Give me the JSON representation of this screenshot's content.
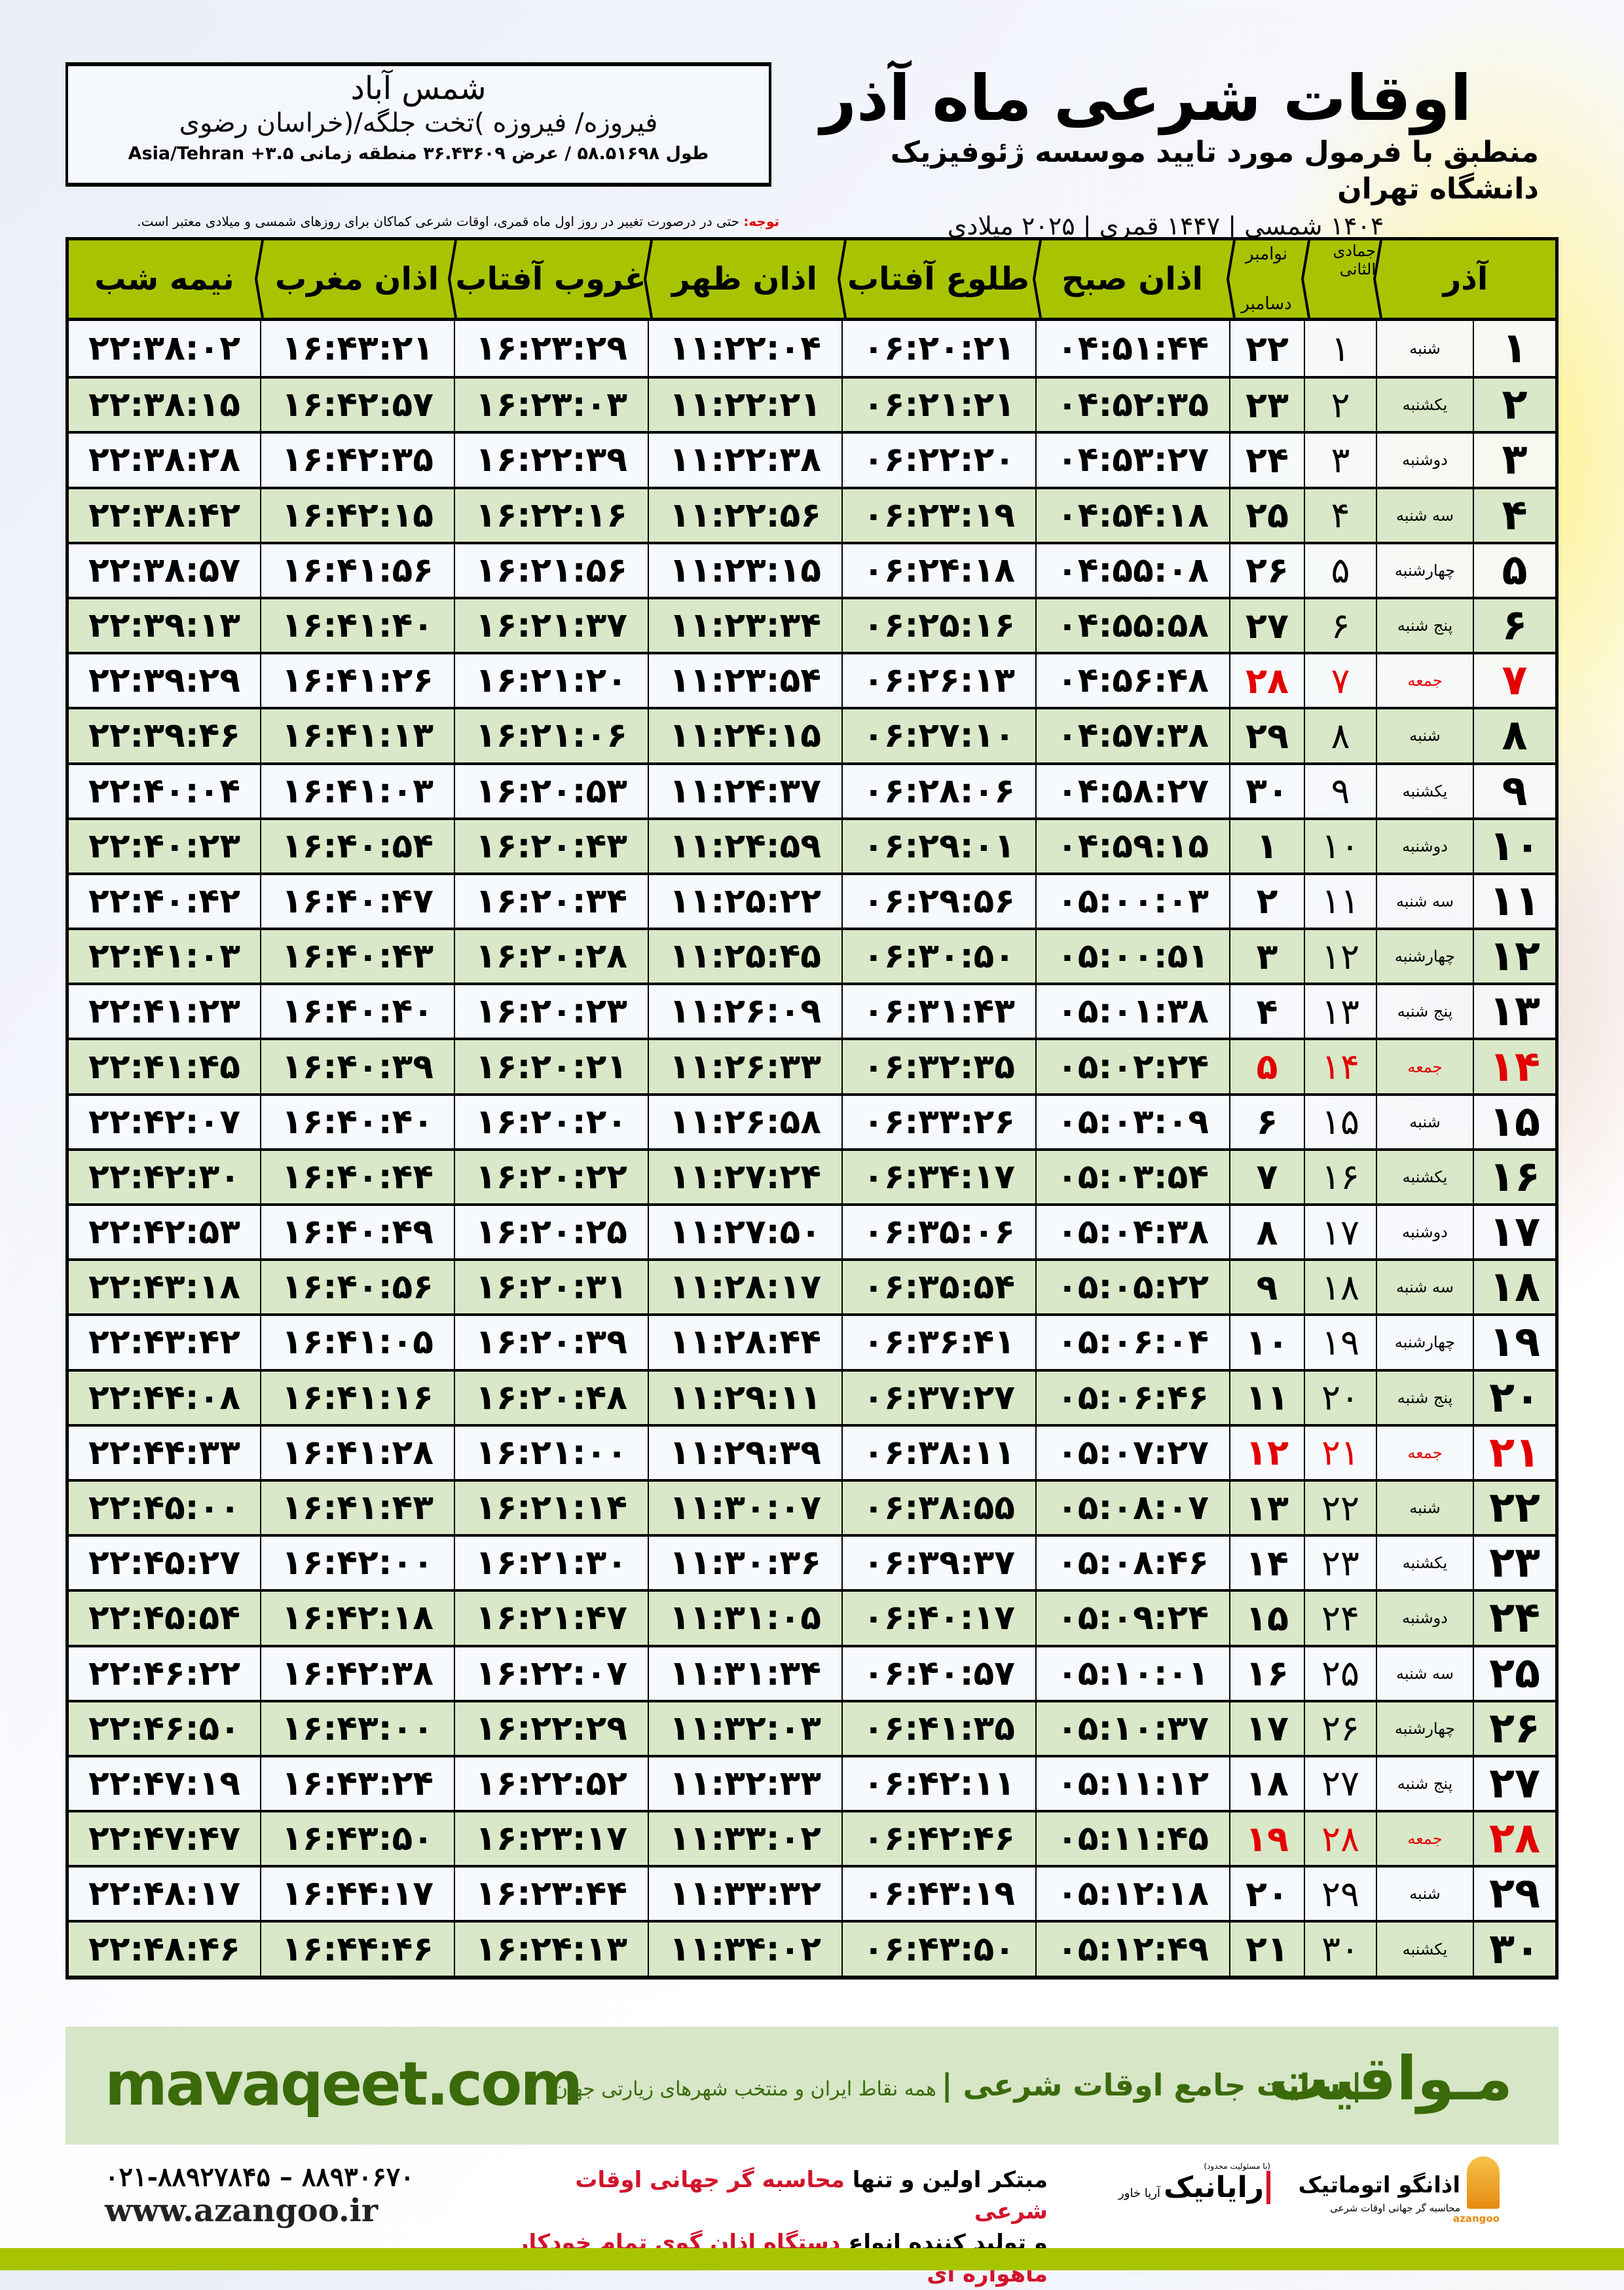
{
  "location": {
    "city": "شمس آباد",
    "province": "فیروزه/ فیروزه )تخت جلگه/(خراسان رضوی",
    "coords": "طول ۵۸.۵۱۶۹۸ / عرض ۳۶.۴۳۶۰۹ منطقه زمانی ۳.۵+ Asia/Tehran"
  },
  "title": {
    "main": "اوقات شرعی ماه آذر",
    "subtitle": "منطبق با فرمول مورد تایید موسسه ژئوفیزیک دانشگاه تهران",
    "years": "۱۴۰۴ شمسی | ۱۴۴۷ قمری | ۲۰۲۵ میلادی"
  },
  "note": {
    "label": "توجه:",
    "text": " حتی در درصورت تغییر در روز اول ماه قمری، اوقات شرعی کماکان برای روزهای شمسی و میلادی معتبر است."
  },
  "colors": {
    "header_green": "#a8c400",
    "row_green": "#d9e8c8",
    "holiday_red": "#e30000",
    "brand_green": "#3b6a0a"
  },
  "table": {
    "headers": {
      "month": "آذر",
      "hijri_month": "جمادی الثانی",
      "greg_month_top": "نوامبر",
      "greg_month_bottom": "دسامبر",
      "fajr": "اذان صبح",
      "sunrise": "طلوع آفتاب",
      "dhuhr": "اذان ظهر",
      "sunset": "غروب آفتاب",
      "maghrib": "اذان مغرب",
      "midnight": "نیمه شب"
    },
    "rows": [
      {
        "day": "۱",
        "weekday": "شنبه",
        "hijri": "۱",
        "greg": "۲۲",
        "fajr": "۰۴:۵۱:۴۴",
        "sunrise": "۰۶:۲۰:۲۱",
        "dhuhr": "۱۱:۲۲:۰۴",
        "sunset": "۱۶:۲۳:۲۹",
        "maghrib": "۱۶:۴۳:۲۱",
        "midnight": "۲۲:۳۸:۰۲"
      },
      {
        "day": "۲",
        "weekday": "یکشنبه",
        "hijri": "۲",
        "greg": "۲۳",
        "fajr": "۰۴:۵۲:۳۵",
        "sunrise": "۰۶:۲۱:۲۱",
        "dhuhr": "۱۱:۲۲:۲۱",
        "sunset": "۱۶:۲۳:۰۳",
        "maghrib": "۱۶:۴۲:۵۷",
        "midnight": "۲۲:۳۸:۱۵"
      },
      {
        "day": "۳",
        "weekday": "دوشنبه",
        "hijri": "۳",
        "greg": "۲۴",
        "fajr": "۰۴:۵۳:۲۷",
        "sunrise": "۰۶:۲۲:۲۰",
        "dhuhr": "۱۱:۲۲:۳۸",
        "sunset": "۱۶:۲۲:۳۹",
        "maghrib": "۱۶:۴۲:۳۵",
        "midnight": "۲۲:۳۸:۲۸"
      },
      {
        "day": "۴",
        "weekday": "سه شنبه",
        "hijri": "۴",
        "greg": "۲۵",
        "fajr": "۰۴:۵۴:۱۸",
        "sunrise": "۰۶:۲۳:۱۹",
        "dhuhr": "۱۱:۲۲:۵۶",
        "sunset": "۱۶:۲۲:۱۶",
        "maghrib": "۱۶:۴۲:۱۵",
        "midnight": "۲۲:۳۸:۴۲"
      },
      {
        "day": "۵",
        "weekday": "چهارشنبه",
        "hijri": "۵",
        "greg": "۲۶",
        "fajr": "۰۴:۵۵:۰۸",
        "sunrise": "۰۶:۲۴:۱۸",
        "dhuhr": "۱۱:۲۳:۱۵",
        "sunset": "۱۶:۲۱:۵۶",
        "maghrib": "۱۶:۴۱:۵۶",
        "midnight": "۲۲:۳۸:۵۷"
      },
      {
        "day": "۶",
        "weekday": "پنج شنبه",
        "hijri": "۶",
        "greg": "۲۷",
        "fajr": "۰۴:۵۵:۵۸",
        "sunrise": "۰۶:۲۵:۱۶",
        "dhuhr": "۱۱:۲۳:۳۴",
        "sunset": "۱۶:۲۱:۳۷",
        "maghrib": "۱۶:۴۱:۴۰",
        "midnight": "۲۲:۳۹:۱۳"
      },
      {
        "day": "۷",
        "weekday": "جمعه",
        "hijri": "۷",
        "greg": "۲۸",
        "holiday": true,
        "fajr": "۰۴:۵۶:۴۸",
        "sunrise": "۰۶:۲۶:۱۳",
        "dhuhr": "۱۱:۲۳:۵۴",
        "sunset": "۱۶:۲۱:۲۰",
        "maghrib": "۱۶:۴۱:۲۶",
        "midnight": "۲۲:۳۹:۲۹"
      },
      {
        "day": "۸",
        "weekday": "شنبه",
        "hijri": "۸",
        "greg": "۲۹",
        "fajr": "۰۴:۵۷:۳۸",
        "sunrise": "۰۶:۲۷:۱۰",
        "dhuhr": "۱۱:۲۴:۱۵",
        "sunset": "۱۶:۲۱:۰۶",
        "maghrib": "۱۶:۴۱:۱۳",
        "midnight": "۲۲:۳۹:۴۶"
      },
      {
        "day": "۹",
        "weekday": "یکشنبه",
        "hijri": "۹",
        "greg": "۳۰",
        "fajr": "۰۴:۵۸:۲۷",
        "sunrise": "۰۶:۲۸:۰۶",
        "dhuhr": "۱۱:۲۴:۳۷",
        "sunset": "۱۶:۲۰:۵۳",
        "maghrib": "۱۶:۴۱:۰۳",
        "midnight": "۲۲:۴۰:۰۴"
      },
      {
        "day": "۱۰",
        "weekday": "دوشنبه",
        "hijri": "۱۰",
        "greg": "۱",
        "fajr": "۰۴:۵۹:۱۵",
        "sunrise": "۰۶:۲۹:۰۱",
        "dhuhr": "۱۱:۲۴:۵۹",
        "sunset": "۱۶:۲۰:۴۳",
        "maghrib": "۱۶:۴۰:۵۴",
        "midnight": "۲۲:۴۰:۲۳"
      },
      {
        "day": "۱۱",
        "weekday": "سه شنبه",
        "hijri": "۱۱",
        "greg": "۲",
        "fajr": "۰۵:۰۰:۰۳",
        "sunrise": "۰۶:۲۹:۵۶",
        "dhuhr": "۱۱:۲۵:۲۲",
        "sunset": "۱۶:۲۰:۳۴",
        "maghrib": "۱۶:۴۰:۴۷",
        "midnight": "۲۲:۴۰:۴۲"
      },
      {
        "day": "۱۲",
        "weekday": "چهارشنبه",
        "hijri": "۱۲",
        "greg": "۳",
        "fajr": "۰۵:۰۰:۵۱",
        "sunrise": "۰۶:۳۰:۵۰",
        "dhuhr": "۱۱:۲۵:۴۵",
        "sunset": "۱۶:۲۰:۲۸",
        "maghrib": "۱۶:۴۰:۴۳",
        "midnight": "۲۲:۴۱:۰۳"
      },
      {
        "day": "۱۳",
        "weekday": "پنج شنبه",
        "hijri": "۱۳",
        "greg": "۴",
        "fajr": "۰۵:۰۱:۳۸",
        "sunrise": "۰۶:۳۱:۴۳",
        "dhuhr": "۱۱:۲۶:۰۹",
        "sunset": "۱۶:۲۰:۲۳",
        "maghrib": "۱۶:۴۰:۴۰",
        "midnight": "۲۲:۴۱:۲۳"
      },
      {
        "day": "۱۴",
        "weekday": "جمعه",
        "hijri": "۱۴",
        "greg": "۵",
        "holiday": true,
        "fajr": "۰۵:۰۲:۲۴",
        "sunrise": "۰۶:۳۲:۳۵",
        "dhuhr": "۱۱:۲۶:۳۳",
        "sunset": "۱۶:۲۰:۲۱",
        "maghrib": "۱۶:۴۰:۳۹",
        "midnight": "۲۲:۴۱:۴۵"
      },
      {
        "day": "۱۵",
        "weekday": "شنبه",
        "hijri": "۱۵",
        "greg": "۶",
        "fajr": "۰۵:۰۳:۰۹",
        "sunrise": "۰۶:۳۳:۲۶",
        "dhuhr": "۱۱:۲۶:۵۸",
        "sunset": "۱۶:۲۰:۲۰",
        "maghrib": "۱۶:۴۰:۴۰",
        "midnight": "۲۲:۴۲:۰۷"
      },
      {
        "day": "۱۶",
        "weekday": "یکشنبه",
        "hijri": "۱۶",
        "greg": "۷",
        "fajr": "۰۵:۰۳:۵۴",
        "sunrise": "۰۶:۳۴:۱۷",
        "dhuhr": "۱۱:۲۷:۲۴",
        "sunset": "۱۶:۲۰:۲۲",
        "maghrib": "۱۶:۴۰:۴۴",
        "midnight": "۲۲:۴۲:۳۰"
      },
      {
        "day": "۱۷",
        "weekday": "دوشنبه",
        "hijri": "۱۷",
        "greg": "۸",
        "fajr": "۰۵:۰۴:۳۸",
        "sunrise": "۰۶:۳۵:۰۶",
        "dhuhr": "۱۱:۲۷:۵۰",
        "sunset": "۱۶:۲۰:۲۵",
        "maghrib": "۱۶:۴۰:۴۹",
        "midnight": "۲۲:۴۲:۵۳"
      },
      {
        "day": "۱۸",
        "weekday": "سه شنبه",
        "hijri": "۱۸",
        "greg": "۹",
        "fajr": "۰۵:۰۵:۲۲",
        "sunrise": "۰۶:۳۵:۵۴",
        "dhuhr": "۱۱:۲۸:۱۷",
        "sunset": "۱۶:۲۰:۳۱",
        "maghrib": "۱۶:۴۰:۵۶",
        "midnight": "۲۲:۴۳:۱۸"
      },
      {
        "day": "۱۹",
        "weekday": "چهارشنبه",
        "hijri": "۱۹",
        "greg": "۱۰",
        "fajr": "۰۵:۰۶:۰۴",
        "sunrise": "۰۶:۳۶:۴۱",
        "dhuhr": "۱۱:۲۸:۴۴",
        "sunset": "۱۶:۲۰:۳۹",
        "maghrib": "۱۶:۴۱:۰۵",
        "midnight": "۲۲:۴۳:۴۲"
      },
      {
        "day": "۲۰",
        "weekday": "پنج شنبه",
        "hijri": "۲۰",
        "greg": "۱۱",
        "fajr": "۰۵:۰۶:۴۶",
        "sunrise": "۰۶:۳۷:۲۷",
        "dhuhr": "۱۱:۲۹:۱۱",
        "sunset": "۱۶:۲۰:۴۸",
        "maghrib": "۱۶:۴۱:۱۶",
        "midnight": "۲۲:۴۴:۰۸"
      },
      {
        "day": "۲۱",
        "weekday": "جمعه",
        "hijri": "۲۱",
        "greg": "۱۲",
        "holiday": true,
        "fajr": "۰۵:۰۷:۲۷",
        "sunrise": "۰۶:۳۸:۱۱",
        "dhuhr": "۱۱:۲۹:۳۹",
        "sunset": "۱۶:۲۱:۰۰",
        "maghrib": "۱۶:۴۱:۲۸",
        "midnight": "۲۲:۴۴:۳۳"
      },
      {
        "day": "۲۲",
        "weekday": "شنبه",
        "hijri": "۲۲",
        "greg": "۱۳",
        "fajr": "۰۵:۰۸:۰۷",
        "sunrise": "۰۶:۳۸:۵۵",
        "dhuhr": "۱۱:۳۰:۰۷",
        "sunset": "۱۶:۲۱:۱۴",
        "maghrib": "۱۶:۴۱:۴۳",
        "midnight": "۲۲:۴۵:۰۰"
      },
      {
        "day": "۲۳",
        "weekday": "یکشنبه",
        "hijri": "۲۳",
        "greg": "۱۴",
        "fajr": "۰۵:۰۸:۴۶",
        "sunrise": "۰۶:۳۹:۳۷",
        "dhuhr": "۱۱:۳۰:۳۶",
        "sunset": "۱۶:۲۱:۳۰",
        "maghrib": "۱۶:۴۲:۰۰",
        "midnight": "۲۲:۴۵:۲۷"
      },
      {
        "day": "۲۴",
        "weekday": "دوشنبه",
        "hijri": "۲۴",
        "greg": "۱۵",
        "fajr": "۰۵:۰۹:۲۴",
        "sunrise": "۰۶:۴۰:۱۷",
        "dhuhr": "۱۱:۳۱:۰۵",
        "sunset": "۱۶:۲۱:۴۷",
        "maghrib": "۱۶:۴۲:۱۸",
        "midnight": "۲۲:۴۵:۵۴"
      },
      {
        "day": "۲۵",
        "weekday": "سه شنبه",
        "hijri": "۲۵",
        "greg": "۱۶",
        "fajr": "۰۵:۱۰:۰۱",
        "sunrise": "۰۶:۴۰:۵۷",
        "dhuhr": "۱۱:۳۱:۳۴",
        "sunset": "۱۶:۲۲:۰۷",
        "maghrib": "۱۶:۴۲:۳۸",
        "midnight": "۲۲:۴۶:۲۲"
      },
      {
        "day": "۲۶",
        "weekday": "چهارشنبه",
        "hijri": "۲۶",
        "greg": "۱۷",
        "fajr": "۰۵:۱۰:۳۷",
        "sunrise": "۰۶:۴۱:۳۵",
        "dhuhr": "۱۱:۳۲:۰۳",
        "sunset": "۱۶:۲۲:۲۹",
        "maghrib": "۱۶:۴۳:۰۰",
        "midnight": "۲۲:۴۶:۵۰"
      },
      {
        "day": "۲۷",
        "weekday": "پنج شنبه",
        "hijri": "۲۷",
        "greg": "۱۸",
        "fajr": "۰۵:۱۱:۱۲",
        "sunrise": "۰۶:۴۲:۱۱",
        "dhuhr": "۱۱:۳۲:۳۳",
        "sunset": "۱۶:۲۲:۵۲",
        "maghrib": "۱۶:۴۳:۲۴",
        "midnight": "۲۲:۴۷:۱۹"
      },
      {
        "day": "۲۸",
        "weekday": "جمعه",
        "hijri": "۲۸",
        "greg": "۱۹",
        "holiday": true,
        "fajr": "۰۵:۱۱:۴۵",
        "sunrise": "۰۶:۴۲:۴۶",
        "dhuhr": "۱۱:۳۳:۰۲",
        "sunset": "۱۶:۲۳:۱۷",
        "maghrib": "۱۶:۴۳:۵۰",
        "midnight": "۲۲:۴۷:۴۷"
      },
      {
        "day": "۲۹",
        "weekday": "شنبه",
        "hijri": "۲۹",
        "greg": "۲۰",
        "fajr": "۰۵:۱۲:۱۸",
        "sunrise": "۰۶:۴۳:۱۹",
        "dhuhr": "۱۱:۳۳:۳۲",
        "sunset": "۱۶:۲۳:۴۴",
        "maghrib": "۱۶:۴۴:۱۷",
        "midnight": "۲۲:۴۸:۱۷"
      },
      {
        "day": "۳۰",
        "weekday": "یکشنبه",
        "hijri": "۳۰",
        "greg": "۲۱",
        "fajr": "۰۵:۱۲:۴۹",
        "sunrise": "۰۶:۴۳:۵۰",
        "dhuhr": "۱۱:۳۴:۰۲",
        "sunset": "۱۶:۲۴:۱۳",
        "maghrib": "۱۶:۴۴:۴۶",
        "midnight": "۲۲:۴۸:۴۶"
      }
    ]
  },
  "banner": {
    "brand": "مـواقیت",
    "tagline": "| سایت جامع اوقات شرعی |",
    "subline": "همه نقاط ایران و منتخب شهرهای زیارتی جهان",
    "url": "mavaqeet.com"
  },
  "footer": {
    "phones": "۰۲۱-۸۸۹۲۷۸۴۵ – ۸۸۹۳۰۶۷۰",
    "website": "www.azangoo.ir",
    "promo_line1_a": "مبتکر اولین و تنها ",
    "promo_line1_b": "محاسبه گر جهانی اوقات شرعی",
    "promo_line2_a": "و تولید کننده انواع ",
    "promo_line2_b": "دستگاه اذان گوی تمام خودکار ماهواره ای",
    "logo_rayanik": "رایانیک",
    "logo_rayanik_sub": "آریا خاور",
    "logo_rayanik_note": "(با مسئولیت محدود)",
    "logo_azangoo": "اذانگو اتوماتیک",
    "logo_azangoo_sub": "محاسبه گر جهانی اوقات شرعی",
    "logo_azangoo_en": "azangoo"
  }
}
